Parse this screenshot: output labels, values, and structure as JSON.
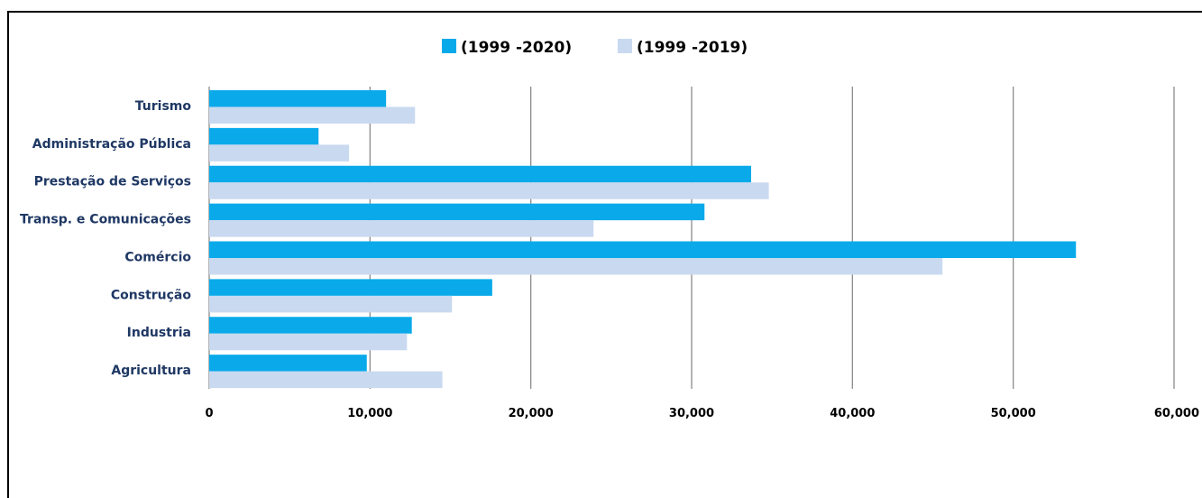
{
  "chart_data": {
    "type": "bar",
    "orientation": "horizontal",
    "title": "",
    "xlabel": "",
    "ylabel": "",
    "categories": [
      "Turismo",
      "Administração Pública",
      "Prestação de Serviços",
      "Transp. e Comunicações",
      "Comércio",
      "Construção",
      "Industria",
      "Agricultura"
    ],
    "series": [
      {
        "name": "(1999 -2020)",
        "color": "#0aaaea",
        "values": [
          11000,
          6800,
          33700,
          30800,
          53900,
          17600,
          12600,
          9800
        ]
      },
      {
        "name": "(1999 -2019)",
        "color": "#c9d9f0",
        "values": [
          12800,
          8700,
          34800,
          23900,
          45600,
          15100,
          12300,
          14500
        ]
      }
    ],
    "xlim": [
      0,
      60000
    ],
    "xticks": [
      0,
      10000,
      20000,
      30000,
      40000,
      50000,
      60000
    ],
    "xtick_labels": [
      "0",
      "10,000",
      "20,000",
      "30,000",
      "40,000",
      "50,000",
      "60,000"
    ],
    "grid": "vertical",
    "legend_position": "top"
  }
}
